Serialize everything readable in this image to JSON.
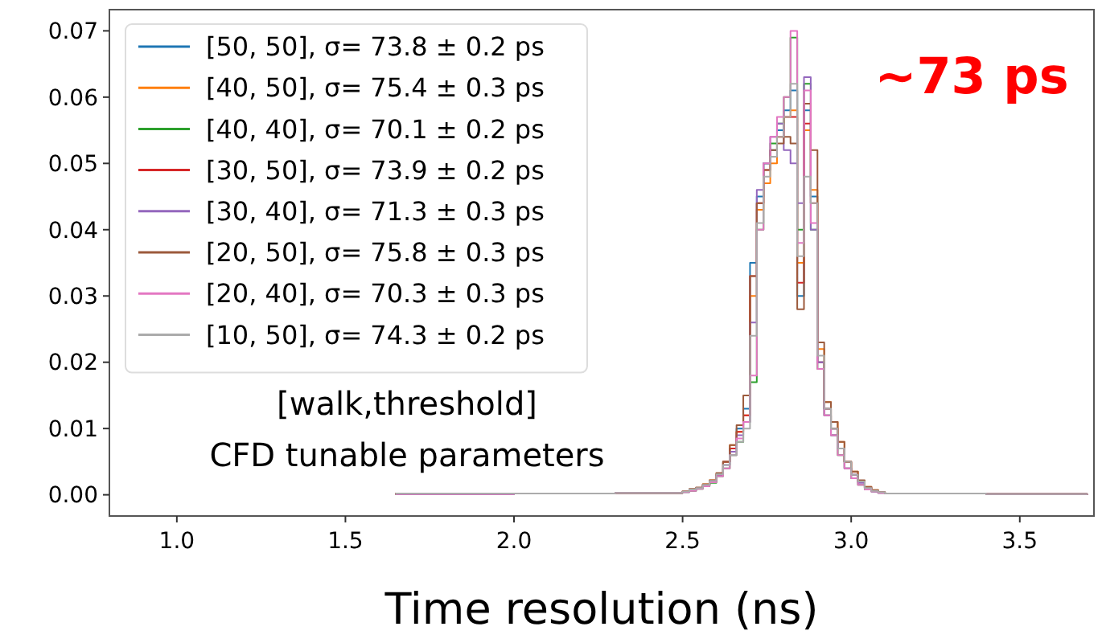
{
  "chart_data": {
    "type": "histogram",
    "xlabel": "Time resolution (ns)",
    "annotations": [
      "~73 ps",
      "[walk,threshold]",
      "CFD tunable parameters"
    ],
    "bins": [
      1.65,
      2.0,
      2.3,
      2.5,
      2.52,
      2.54,
      2.56,
      2.58,
      2.6,
      2.62,
      2.64,
      2.66,
      2.68,
      2.7,
      2.72,
      2.74,
      2.76,
      2.78,
      2.8,
      2.82,
      2.84,
      2.86,
      2.88,
      2.9,
      2.92,
      2.94,
      2.96,
      2.98,
      3.0,
      3.02,
      3.04,
      3.06,
      3.08,
      3.1,
      3.4,
      3.7
    ],
    "series": [
      {
        "name": "[50, 50], σ= 73.8 ± 0.2 ps",
        "color": "#1f77b4",
        "values": [
          0.0002,
          0.0002,
          0.0003,
          0.0005,
          0.0008,
          0.001,
          0.0015,
          0.002,
          0.003,
          0.005,
          0.007,
          0.01,
          0.013,
          0.035,
          0.045,
          0.05,
          0.052,
          0.055,
          0.058,
          0.061,
          0.03,
          0.058,
          0.045,
          0.02,
          0.013,
          0.01,
          0.007,
          0.005,
          0.003,
          0.002,
          0.001,
          0.0006,
          0.0004,
          0.0002,
          0.0001
        ]
      },
      {
        "name": "[40, 50], σ= 75.4 ± 0.3 ps",
        "color": "#ff7f0e",
        "values": [
          0.0002,
          0.0002,
          0.0003,
          0.0005,
          0.0008,
          0.001,
          0.0016,
          0.0022,
          0.0032,
          0.005,
          0.0075,
          0.0095,
          0.012,
          0.03,
          0.043,
          0.047,
          0.05,
          0.054,
          0.057,
          0.058,
          0.035,
          0.055,
          0.046,
          0.022,
          0.014,
          0.011,
          0.008,
          0.005,
          0.0035,
          0.002,
          0.0012,
          0.0007,
          0.0004,
          0.0002,
          0.0001
        ]
      },
      {
        "name": "[40, 40], σ= 70.1 ± 0.2 ps",
        "color": "#2ca02c",
        "values": [
          0.0001,
          0.0002,
          0.0003,
          0.0004,
          0.0006,
          0.0009,
          0.0013,
          0.0018,
          0.0028,
          0.004,
          0.006,
          0.008,
          0.011,
          0.017,
          0.04,
          0.05,
          0.053,
          0.056,
          0.06,
          0.069,
          0.04,
          0.062,
          0.04,
          0.019,
          0.012,
          0.009,
          0.006,
          0.004,
          0.0025,
          0.0015,
          0.0008,
          0.0005,
          0.0003,
          0.0002,
          0.0001
        ]
      },
      {
        "name": "[30, 50], σ= 73.9 ± 0.2 ps",
        "color": "#d62728",
        "values": [
          0.0002,
          0.0002,
          0.0003,
          0.0005,
          0.0008,
          0.001,
          0.0015,
          0.002,
          0.003,
          0.005,
          0.007,
          0.0095,
          0.012,
          0.033,
          0.044,
          0.049,
          0.051,
          0.054,
          0.057,
          0.057,
          0.032,
          0.056,
          0.044,
          0.02,
          0.013,
          0.01,
          0.007,
          0.005,
          0.003,
          0.002,
          0.001,
          0.0006,
          0.0004,
          0.0002,
          0.0001
        ]
      },
      {
        "name": "[30, 40], σ= 71.3 ± 0.3 ps",
        "color": "#9467bd",
        "values": [
          0.0001,
          0.0002,
          0.0003,
          0.0004,
          0.0007,
          0.001,
          0.0014,
          0.002,
          0.003,
          0.0045,
          0.0065,
          0.009,
          0.011,
          0.026,
          0.046,
          0.05,
          0.054,
          0.056,
          0.052,
          0.05,
          0.044,
          0.063,
          0.04,
          0.02,
          0.012,
          0.009,
          0.007,
          0.004,
          0.003,
          0.0018,
          0.001,
          0.0005,
          0.0003,
          0.0002,
          0.0001
        ]
      },
      {
        "name": "[20, 50], σ= 75.8 ± 0.3 ps",
        "color": "#9c5a3c",
        "values": [
          0.0002,
          0.0002,
          0.0003,
          0.0005,
          0.0009,
          0.0011,
          0.0016,
          0.0022,
          0.0033,
          0.005,
          0.0075,
          0.0105,
          0.015,
          0.033,
          0.044,
          0.049,
          0.052,
          0.053,
          0.054,
          0.053,
          0.028,
          0.059,
          0.052,
          0.023,
          0.014,
          0.011,
          0.008,
          0.005,
          0.0035,
          0.0022,
          0.0012,
          0.0007,
          0.0004,
          0.0002,
          0.0001
        ]
      },
      {
        "name": "[20, 40], σ= 70.3 ± 0.3 ps",
        "color": "#e377c2",
        "values": [
          0.0001,
          0.0002,
          0.0003,
          0.0004,
          0.0006,
          0.0009,
          0.0013,
          0.0019,
          0.0028,
          0.004,
          0.006,
          0.0085,
          0.011,
          0.018,
          0.04,
          0.05,
          0.054,
          0.057,
          0.06,
          0.07,
          0.038,
          0.061,
          0.041,
          0.019,
          0.012,
          0.009,
          0.006,
          0.004,
          0.0025,
          0.0015,
          0.0008,
          0.0005,
          0.0003,
          0.0002,
          0.0001
        ]
      },
      {
        "name": "[10, 50], σ= 74.3 ± 0.2 ps",
        "color": "#ababab",
        "values": [
          0.0002,
          0.0002,
          0.0003,
          0.0005,
          0.0008,
          0.001,
          0.0015,
          0.0021,
          0.0031,
          0.0045,
          0.006,
          0.008,
          0.01,
          0.024,
          0.041,
          0.048,
          0.051,
          0.054,
          0.057,
          0.062,
          0.036,
          0.048,
          0.044,
          0.021,
          0.013,
          0.01,
          0.007,
          0.005,
          0.003,
          0.002,
          0.001,
          0.0006,
          0.0004,
          0.0002,
          0.0001
        ]
      }
    ],
    "xlim": [
      0.8,
      3.72
    ],
    "ylim": [
      -0.0032,
      0.0732
    ],
    "xticks": [
      {
        "value": 1,
        "label": "1.0"
      },
      {
        "value": 1.5,
        "label": "1.5"
      },
      {
        "value": 2,
        "label": "2.0"
      },
      {
        "value": 2.5,
        "label": "2.5"
      },
      {
        "value": 3,
        "label": "3.0"
      },
      {
        "value": 3.5,
        "label": "3.5"
      }
    ],
    "yticks": [
      {
        "value": 0,
        "label": "0.00"
      },
      {
        "value": 0.01,
        "label": "0.01"
      },
      {
        "value": 0.02,
        "label": "0.02"
      },
      {
        "value": 0.03,
        "label": "0.03"
      },
      {
        "value": 0.04,
        "label": "0.04"
      },
      {
        "value": 0.05,
        "label": "0.05"
      },
      {
        "value": 0.06,
        "label": "0.06"
      },
      {
        "value": 0.07,
        "label": "0.07"
      }
    ],
    "grid": false,
    "legend": "top left"
  }
}
